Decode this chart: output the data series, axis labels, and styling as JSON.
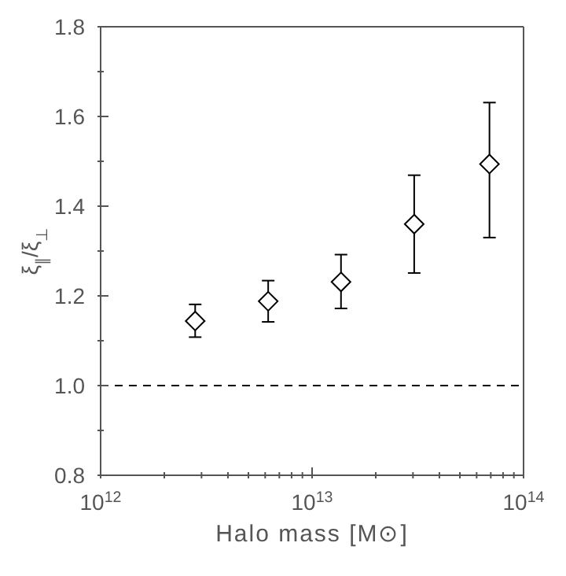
{
  "chart_data": {
    "type": "scatter",
    "xlabel": "Halo mass [M⊙]",
    "ylabel": "ξ$_{∥}$/ξ$_{⊥}$",
    "x": [
      2800000000000.0,
      6200000000000.0,
      13700000000000.0,
      30400000000000.0,
      69000000000000.0
    ],
    "series": [
      {
        "color": "#000000",
        "values": [
          1.144,
          1.188,
          1.231,
          1.36,
          1.494
        ],
        "errors": [
          [
            1.108,
            1.181
          ],
          [
            1.142,
            1.234
          ],
          [
            1.172,
            1.292
          ],
          [
            1.251,
            1.469
          ],
          [
            1.33,
            1.631
          ]
        ]
      }
    ],
    "log": "x",
    "marker": "diamond",
    "grid": false,
    "legend": false,
    "xlim": [
      1000000000000.0,
      100000000000000.0
    ],
    "xticks": [
      {
        "value": 1000000000000.0,
        "label": "10$^{12}$"
      },
      {
        "value": 2000000000000.0,
        "label": null
      },
      {
        "value": 3000000000000.0,
        "label": null
      },
      {
        "value": 4000000000000.0,
        "label": null
      },
      {
        "value": 5000000000000.0,
        "label": null
      },
      {
        "value": 6000000000000.0,
        "label": null
      },
      {
        "value": 7000000000000.0,
        "label": null
      },
      {
        "value": 8000000000000.0,
        "label": null
      },
      {
        "value": 9000000000000.0,
        "label": null
      },
      {
        "value": 10000000000000.0,
        "label": "10$^{13}$"
      },
      {
        "value": 20000000000000.0,
        "label": null
      },
      {
        "value": 30000000000000.0,
        "label": null
      },
      {
        "value": 40000000000000.0,
        "label": null
      },
      {
        "value": 50000000000000.0,
        "label": null
      },
      {
        "value": 60000000000000.0,
        "label": null
      },
      {
        "value": 70000000000000.0,
        "label": null
      },
      {
        "value": 80000000000000.0,
        "label": null
      },
      {
        "value": 90000000000000.0,
        "label": null
      },
      {
        "value": 100000000000000.0,
        "label": "10$^{14}$"
      }
    ],
    "ylim": [
      0.8,
      1.8
    ],
    "yticks": [
      {
        "value": 0.8,
        "label": "0.8"
      },
      {
        "value": 0.9,
        "label": null
      },
      {
        "value": 1.0,
        "label": "1.0"
      },
      {
        "value": 1.1,
        "label": null
      },
      {
        "value": 1.2,
        "label": "1.2"
      },
      {
        "value": 1.3,
        "label": null
      },
      {
        "value": 1.4,
        "label": "1.4"
      },
      {
        "value": 1.5,
        "label": null
      },
      {
        "value": 1.6,
        "label": "1.6"
      },
      {
        "value": 1.7,
        "label": null
      },
      {
        "value": 1.8,
        "label": "1.8"
      }
    ],
    "ref_lines": [
      {
        "axis": "y",
        "value": 1.0,
        "label": null,
        "color": "#000000",
        "line_style": "dashed"
      }
    ]
  }
}
